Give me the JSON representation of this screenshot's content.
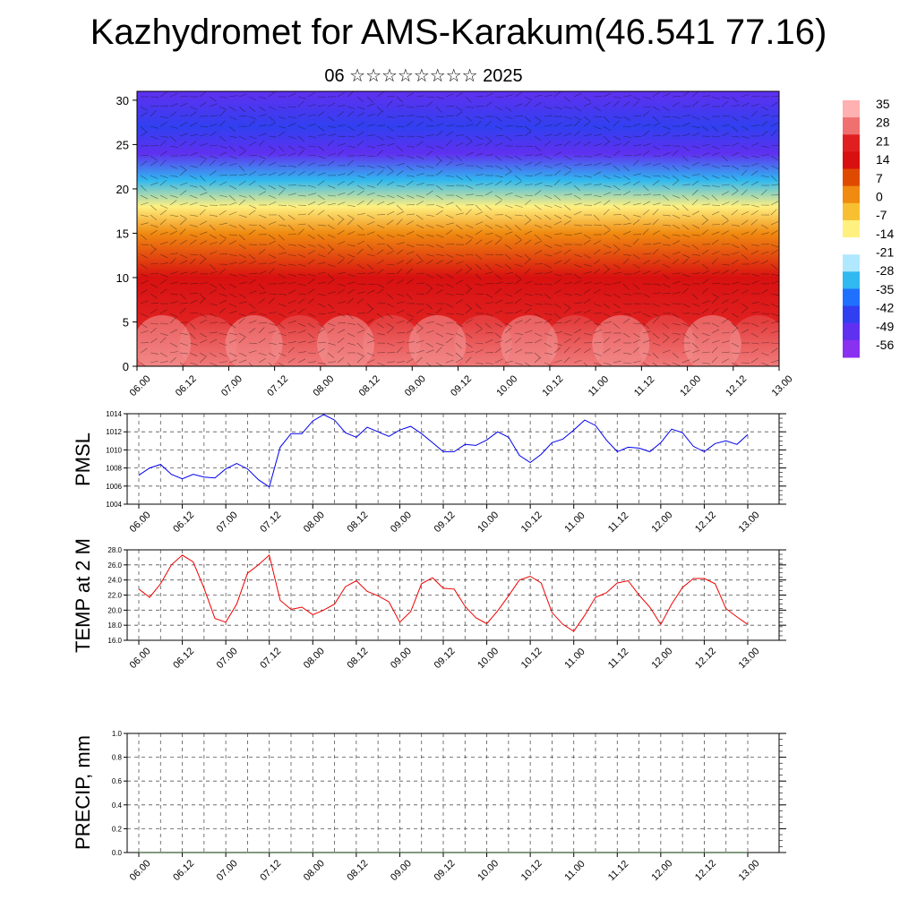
{
  "title": "Kazhydromet for AMS-Karakum(46.541 77.16)",
  "subtitle": "06 ☆☆☆☆☆☆☆☆ 2025",
  "colors": {
    "pmsl_line": "#0000ee",
    "temp_line": "#ee0000",
    "precip_line": "#003300",
    "axis": "#000000",
    "grid": "#555555"
  },
  "chart_data": [
    {
      "id": "cross_section",
      "type": "heatmap",
      "title": "",
      "xlabel": "",
      "ylabel": "",
      "x_ticks": [
        "06.00",
        "06.12",
        "07.00",
        "07.12",
        "08.00",
        "08.12",
        "09.00",
        "09.12",
        "10.00",
        "10.12",
        "11.00",
        "11.12",
        "12.00",
        "12.12",
        "13.00"
      ],
      "y_ticks": [
        "0",
        "5",
        "10",
        "15",
        "20",
        "25",
        "30"
      ],
      "ylim": [
        0,
        31
      ],
      "colorbar_labels": [
        "35",
        "28",
        "21",
        "14",
        "7",
        "0",
        "-7",
        "-14",
        "-21",
        "-28",
        "-35",
        "-42",
        "-49",
        "-56"
      ],
      "colorbar_colors": [
        "#ffb0b0",
        "#f07070",
        "#e02020",
        "#d81010",
        "#e04a00",
        "#f08a10",
        "#f8c030",
        "#fff080",
        "#ffffff",
        "#b0e8ff",
        "#30b8f0",
        "#2070ff",
        "#3040f0",
        "#6030f0",
        "#8a30f0"
      ],
      "approx_temperature_profile": [
        {
          "height": 0,
          "value": 30
        },
        {
          "height": 5,
          "value": 22
        },
        {
          "height": 10,
          "value": 14
        },
        {
          "height": 15,
          "value": 0
        },
        {
          "height": 18,
          "value": -14
        },
        {
          "height": 21,
          "value": -35
        },
        {
          "height": 24,
          "value": -56
        },
        {
          "height": 27,
          "value": -49
        },
        {
          "height": 31,
          "value": -56
        }
      ],
      "wind_barbs": true
    },
    {
      "id": "pmsl",
      "type": "line",
      "title": "",
      "ylabel": "PMSL",
      "x_ticks": [
        "06.00",
        "06.12",
        "07.00",
        "07.12",
        "08.00",
        "08.12",
        "09.00",
        "09.12",
        "10.00",
        "10.12",
        "11.00",
        "11.12",
        "12.00",
        "12.12",
        "13.00"
      ],
      "y_ticks": [
        "1004",
        "1006",
        "1008",
        "1010",
        "1012",
        "1014"
      ],
      "ylim": [
        1004,
        1014
      ],
      "grid": true,
      "series": [
        {
          "values": [
            1007.2,
            1008.0,
            1008.4,
            1007.3,
            1006.8,
            1007.3,
            1007.0,
            1006.9,
            1007.9,
            1008.5,
            1007.9,
            1006.7,
            1005.9,
            1010.3,
            1011.8,
            1011.8,
            1013.2,
            1013.9,
            1013.3,
            1011.9,
            1011.4,
            1012.5,
            1012.0,
            1011.5,
            1012.2,
            1012.6,
            1011.8,
            1010.8,
            1009.8,
            1009.8,
            1010.6,
            1010.5,
            1011.1,
            1012.0,
            1011.4,
            1009.4,
            1008.6,
            1009.5,
            1010.8,
            1011.2,
            1012.2,
            1013.3,
            1012.7,
            1011.1,
            1009.8,
            1010.3,
            1010.2,
            1009.8,
            1010.8,
            1012.3,
            1011.9,
            1010.4,
            1009.8,
            1010.7,
            1011.0,
            1010.6,
            1011.7
          ]
        }
      ]
    },
    {
      "id": "temp2m",
      "type": "line",
      "title": "",
      "ylabel": "TEMP at 2 M",
      "x_ticks": [
        "06.00",
        "06.12",
        "07.00",
        "07.12",
        "08.00",
        "08.12",
        "09.00",
        "09.12",
        "10.00",
        "10.12",
        "11.00",
        "11.12",
        "12.00",
        "12.12",
        "13.00"
      ],
      "y_ticks": [
        "16.0",
        "18.0",
        "20.0",
        "22.0",
        "24.0",
        "26.0",
        "28.0"
      ],
      "ylim": [
        16,
        28
      ],
      "grid": true,
      "series": [
        {
          "values": [
            22.8,
            21.7,
            23.5,
            26.0,
            27.3,
            26.4,
            22.9,
            18.9,
            18.4,
            20.8,
            24.9,
            26.0,
            27.3,
            21.3,
            20.1,
            20.4,
            19.4,
            20.0,
            20.8,
            23.1,
            23.9,
            22.5,
            21.9,
            21.1,
            18.4,
            19.8,
            23.5,
            24.3,
            22.9,
            22.8,
            20.5,
            19.0,
            18.2,
            19.9,
            21.9,
            24.0,
            24.5,
            23.6,
            19.7,
            18.1,
            17.2,
            19.3,
            21.7,
            22.3,
            23.6,
            23.9,
            22.0,
            20.4,
            18.1,
            20.8,
            23.0,
            24.2,
            24.2,
            23.5,
            20.2,
            19.1,
            18.1
          ]
        }
      ]
    },
    {
      "id": "precip",
      "type": "line",
      "title": "",
      "ylabel": "PRECIP, mm",
      "x_ticks": [
        "06.00",
        "06.12",
        "07.00",
        "07.12",
        "08.00",
        "08.12",
        "09.00",
        "09.12",
        "10.00",
        "10.12",
        "11.00",
        "11.12",
        "12.00",
        "12.12",
        "13.00"
      ],
      "y_ticks": [
        "0.0",
        "0.2",
        "0.4",
        "0.6",
        "0.8",
        "1.0"
      ],
      "ylim": [
        0,
        1
      ],
      "grid": true,
      "series": [
        {
          "values": [
            0,
            0,
            0,
            0,
            0,
            0,
            0,
            0,
            0,
            0,
            0,
            0,
            0,
            0,
            0,
            0,
            0,
            0,
            0,
            0,
            0,
            0,
            0,
            0,
            0,
            0,
            0,
            0,
            0,
            0,
            0,
            0,
            0,
            0,
            0,
            0,
            0,
            0,
            0,
            0,
            0,
            0,
            0,
            0,
            0,
            0,
            0,
            0,
            0,
            0,
            0,
            0,
            0,
            0,
            0,
            0,
            0
          ]
        }
      ]
    }
  ]
}
